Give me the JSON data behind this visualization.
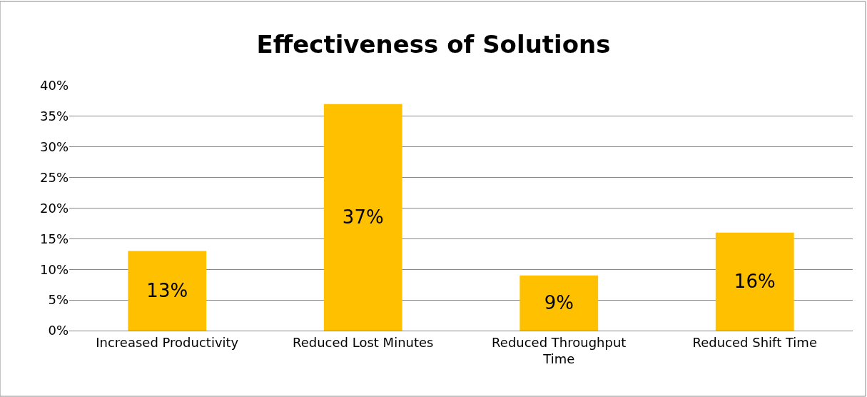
{
  "chart_data": {
    "type": "bar",
    "title": "Effectiveness of Solutions",
    "categories": [
      "Increased Productivity",
      "Reduced Lost Minutes",
      "Reduced Throughput Time",
      "Reduced Shift Time"
    ],
    "values": [
      13,
      37,
      9,
      16
    ],
    "value_labels": [
      "13%",
      "37%",
      "9%",
      "16%"
    ],
    "color": "#ffc000",
    "ylim": [
      0,
      40
    ],
    "yticks": [
      {
        "value": 0,
        "label": "0%"
      },
      {
        "value": 5,
        "label": "5%"
      },
      {
        "value": 10,
        "label": "10%"
      },
      {
        "value": 15,
        "label": "15%"
      },
      {
        "value": 20,
        "label": "20%"
      },
      {
        "value": 25,
        "label": "25%"
      },
      {
        "value": 30,
        "label": "30%"
      },
      {
        "value": 35,
        "label": "35%"
      },
      {
        "value": 40,
        "label": "40%"
      }
    ],
    "grid": "y",
    "legend": false
  }
}
